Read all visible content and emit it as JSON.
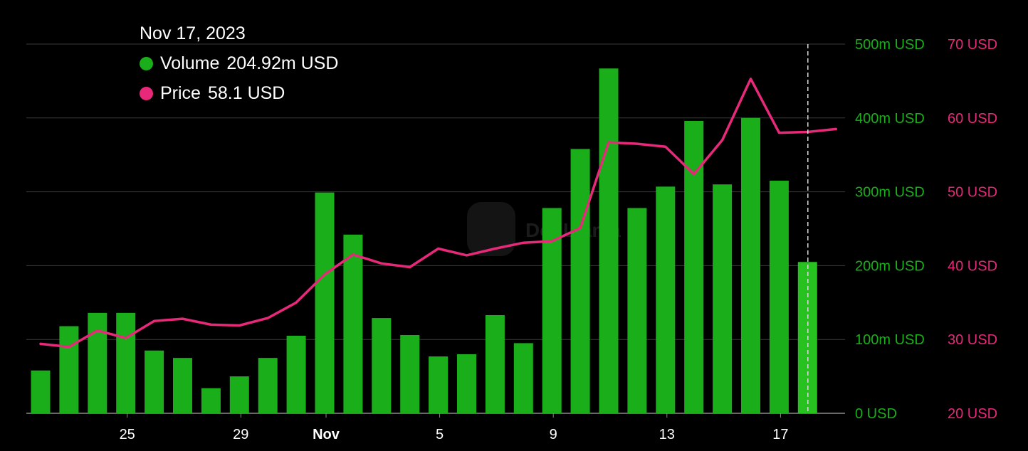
{
  "watermark": "DefiLlama",
  "tooltip": {
    "date": "Nov 17, 2023",
    "volume_label": "Volume",
    "volume_value": "204.92m USD",
    "price_label": "Price",
    "price_value": "58.1 USD"
  },
  "colors": {
    "background": "#000000",
    "volume": "#1aae1a",
    "volume_highlight": "#27c21f",
    "price": "#e8297a",
    "grid": "#3a3a3a",
    "axis_text": "#ffffff"
  },
  "chart_data": {
    "type": "bar",
    "x_ticks": [
      "25",
      "29",
      "Nov",
      "5",
      "9",
      "13",
      "17"
    ],
    "series": [
      {
        "name": "Volume",
        "type": "bar",
        "axis": "left",
        "values": [
          58,
          118,
          136,
          136,
          85,
          75,
          34,
          50,
          75,
          105,
          299,
          242,
          129,
          106,
          77,
          80,
          133,
          95,
          278,
          358,
          467,
          278,
          307,
          396,
          310,
          400,
          315,
          204.92
        ]
      },
      {
        "name": "Price",
        "type": "line",
        "axis": "right",
        "values": [
          29.4,
          29.0,
          31.2,
          30.2,
          32.5,
          32.8,
          32.0,
          31.9,
          32.9,
          35.0,
          38.8,
          41.5,
          40.3,
          39.8,
          42.3,
          41.4,
          42.3,
          43.1,
          43.3,
          45.1,
          56.7,
          56.5,
          56.1,
          52.4,
          57.0,
          65.3,
          58.0,
          58.1,
          58.5
        ]
      }
    ],
    "y_left": {
      "ticks": [
        "0 USD",
        "100m USD",
        "200m USD",
        "300m USD",
        "400m USD",
        "500m USD"
      ],
      "range": [
        0,
        500
      ]
    },
    "y_right": {
      "ticks": [
        "20 USD",
        "30 USD",
        "40 USD",
        "50 USD",
        "60 USD",
        "70 USD"
      ],
      "range": [
        20,
        70
      ]
    },
    "highlight_index": 27,
    "grid": true
  }
}
